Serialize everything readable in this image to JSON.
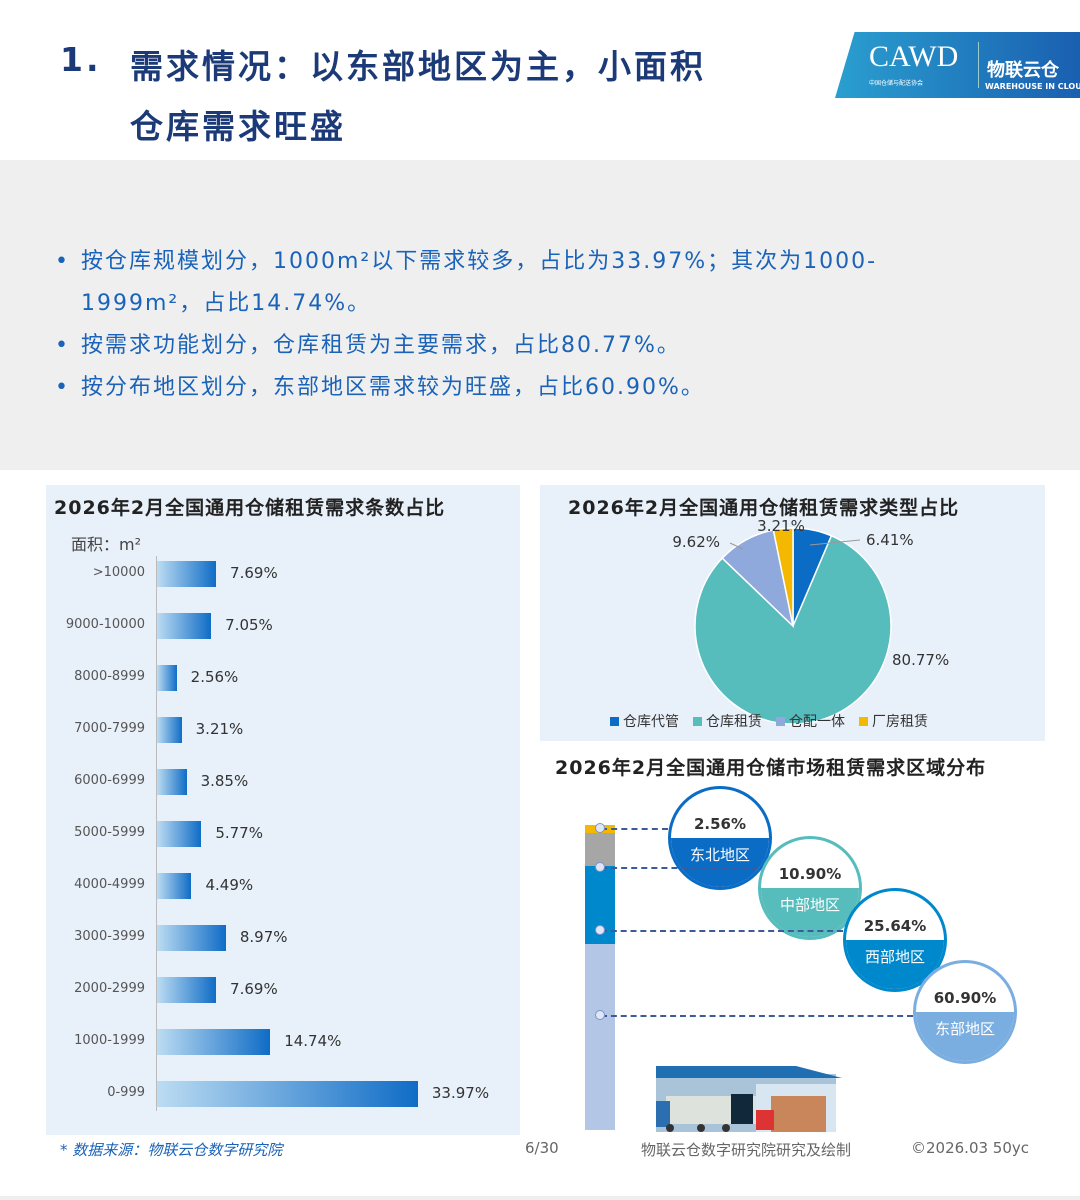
{
  "header": {
    "number": "1.",
    "title_line1": "需求情况：以东部地区为主，小面积",
    "title_line2": "仓库需求旺盛",
    "logo_text": "CAWD",
    "logo_subtext": "中国仓储与配送协会",
    "logo2_text": "物联云仓",
    "logo2_subtext": "WAREHOUSE IN CLOUD"
  },
  "bullets": [
    "按仓库规模划分，1000m²以下需求较多，占比为33.97%；其次为1000-",
    "1999m²，占比14.74%。",
    "按需求功能划分，仓库租赁为主要需求，占比80.77%。",
    "按分布地区划分，东部地区需求较为旺盛，占比60.90%。"
  ],
  "chart_data": [
    {
      "type": "bar",
      "orientation": "horizontal",
      "title": "2026年2月全国通用仓储租赁需求条数占比",
      "ylabel": "面积：m²",
      "categories": [
        ">10000",
        "9000-10000",
        "8000-8999",
        "7000-7999",
        "6000-6999",
        "5000-5999",
        "4000-4999",
        "3000-3999",
        "2000-2999",
        "1000-1999",
        "0-999"
      ],
      "values": [
        7.69,
        7.05,
        2.56,
        3.21,
        3.85,
        5.77,
        4.49,
        8.97,
        7.69,
        14.74,
        33.97
      ],
      "labels": [
        "7.69%",
        "7.05%",
        "2.56%",
        "3.21%",
        "3.85%",
        "5.77%",
        "4.49%",
        "8.97%",
        "7.69%",
        "14.74%",
        "33.97%"
      ]
    },
    {
      "type": "pie",
      "title": "2026年2月全国通用仓储租赁需求类型占比",
      "legend": "bottom",
      "categories": [
        "仓库代管",
        "仓库租赁",
        "仓配一体",
        "厂房租赁"
      ],
      "values": [
        6.41,
        80.77,
        9.62,
        3.21
      ],
      "labels": [
        "6.41%",
        "80.77%",
        "9.62%",
        "3.21%"
      ],
      "colors": [
        "#0a6cc4",
        "#56bcbc",
        "#8fa9dc",
        "#f5b800"
      ]
    },
    {
      "type": "bar",
      "stacked": true,
      "title": "2026年2月全国通用仓储市场租赁需求区域分布",
      "categories": [
        "东北地区",
        "中部地区",
        "西部地区",
        "东部地区"
      ],
      "values": [
        2.56,
        10.9,
        25.64,
        60.9
      ],
      "labels": [
        "2.56%",
        "10.90%",
        "25.64%",
        "60.90%"
      ],
      "colors": [
        "#f5b800",
        "#a6a6a6",
        "#0088cc",
        "#b3c6e6"
      ],
      "circle_colors": [
        "#0a6cc4",
        "#56bcbc",
        "#0088cc",
        "#7aaee0"
      ]
    }
  ],
  "footer": {
    "source": "* 数据来源：物联云仓数字研究院",
    "page": "6/30",
    "credit": "物联云仓数字研究院研究及绘制",
    "copyright": "©2026.03 50yc"
  }
}
